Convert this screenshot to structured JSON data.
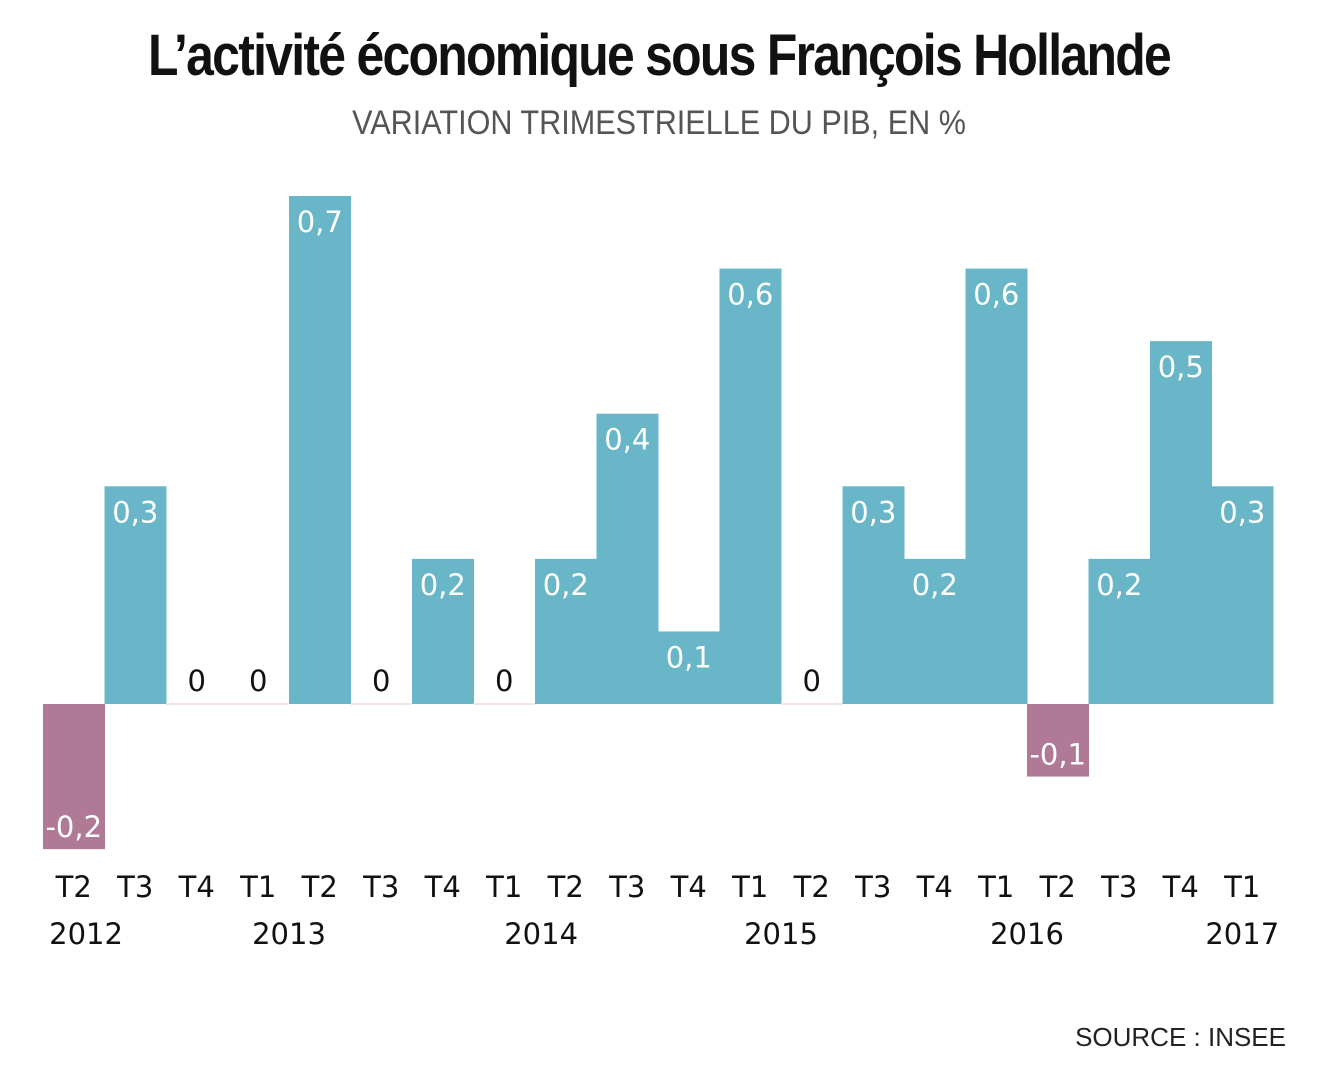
{
  "chart_data": {
    "type": "bar",
    "title": "L’activité économique sous François Hollande",
    "subtitle": "VARIATION TRIMESTRIELLE DU PIB, EN %",
    "source": "SOURCE : INSEE",
    "categories": [
      "T2",
      "T3",
      "T4",
      "T1",
      "T2",
      "T3",
      "T4",
      "T1",
      "T2",
      "T3",
      "T4",
      "T1",
      "T2",
      "T3",
      "T4",
      "T1",
      "T2",
      "T3",
      "T4",
      "T1"
    ],
    "years": [
      "2012",
      "2013",
      "2014",
      "2015",
      "2016",
      "2017"
    ],
    "values": [
      -0.2,
      0.3,
      0,
      0,
      0.7,
      0,
      0.2,
      0,
      0.2,
      0.4,
      0.1,
      0.6,
      0,
      0.3,
      0.2,
      0.6,
      -0.1,
      0.2,
      0.5,
      0.3
    ],
    "value_labels": [
      "-0,2",
      "0,3",
      "0",
      "0",
      "0,7",
      "0",
      "0,2",
      "0",
      "0,2",
      "0,4",
      "0,1",
      "0,6",
      "0",
      "0,3",
      "0,2",
      "0,6",
      "-0,1",
      "0,2",
      "0,5",
      "0,3"
    ],
    "ylim": [
      -0.2,
      0.7
    ],
    "grid": false,
    "colors": {
      "positive": "#69b6c8",
      "negative": "#b07a97"
    }
  }
}
